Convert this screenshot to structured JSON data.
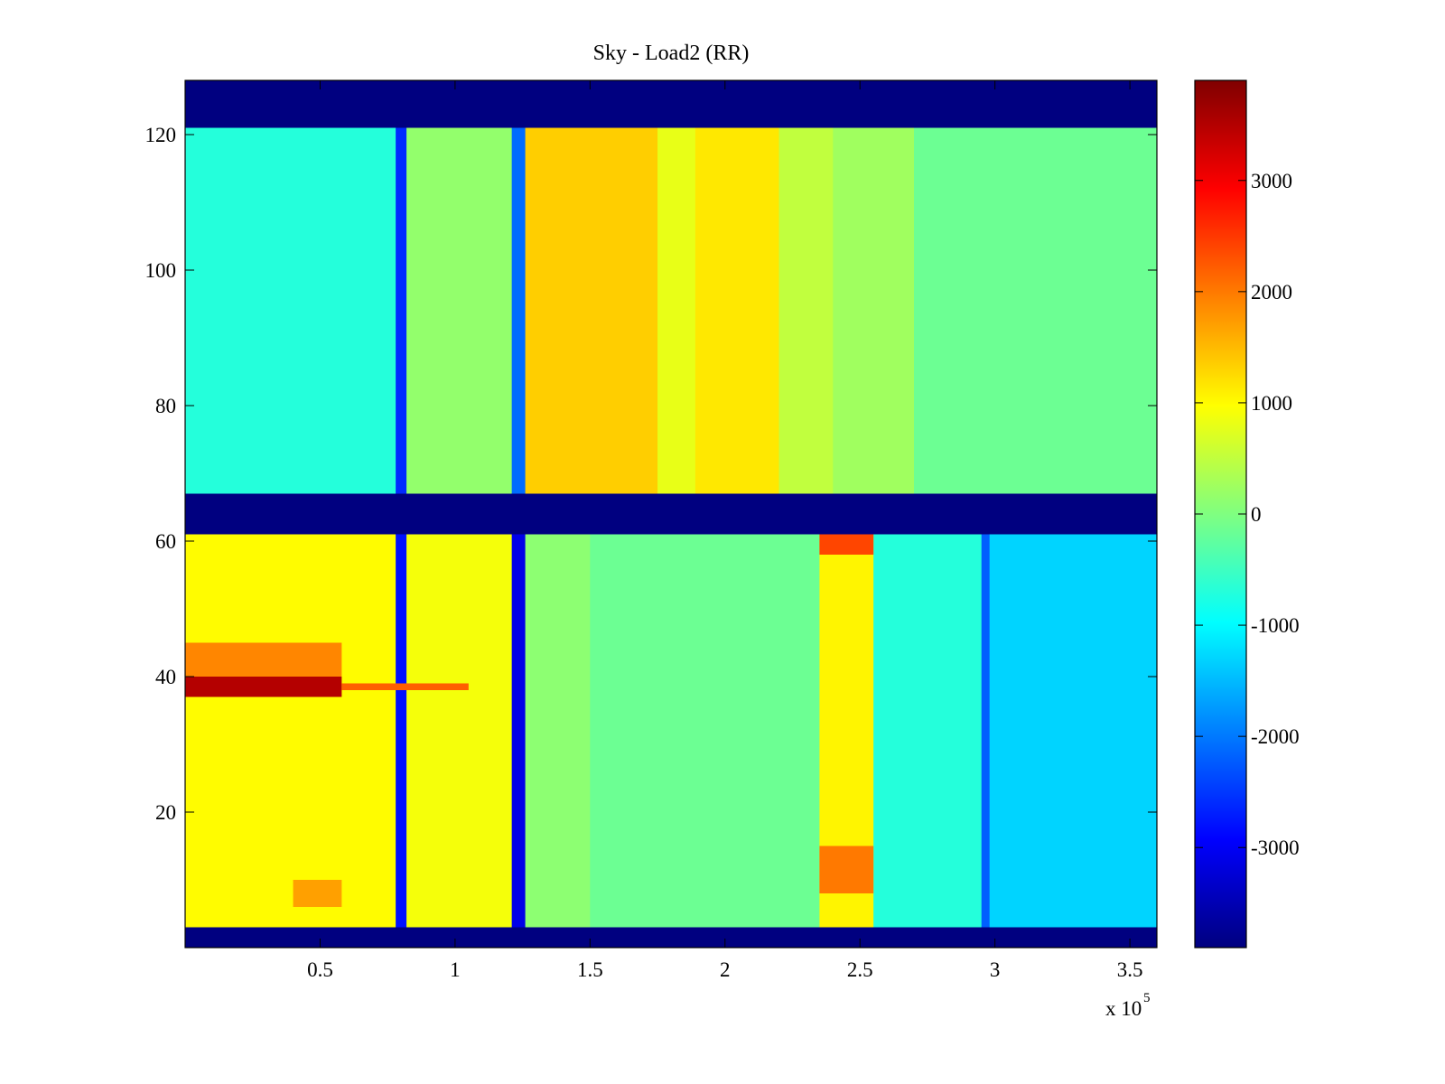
{
  "chart_data": {
    "type": "heatmap",
    "title": "Sky - Load2 (RR)",
    "xlabel": "",
    "ylabel": "",
    "x_multiplier_label": "x 10",
    "x_multiplier_exponent": "5",
    "xlim": [
      0,
      360000
    ],
    "ylim": [
      0,
      128
    ],
    "x_ticks": [
      {
        "value": 50000,
        "label": "0.5"
      },
      {
        "value": 100000,
        "label": "1"
      },
      {
        "value": 150000,
        "label": "1.5"
      },
      {
        "value": 200000,
        "label": "2"
      },
      {
        "value": 250000,
        "label": "2.5"
      },
      {
        "value": 300000,
        "label": "3"
      },
      {
        "value": 350000,
        "label": "3.5"
      }
    ],
    "y_ticks": [
      {
        "value": 20,
        "label": "20"
      },
      {
        "value": 40,
        "label": "40"
      },
      {
        "value": 60,
        "label": "60"
      },
      {
        "value": 80,
        "label": "80"
      },
      {
        "value": 100,
        "label": "100"
      },
      {
        "value": 120,
        "label": "120"
      }
    ],
    "colormap": "jet",
    "clim": [
      -3900,
      3900
    ],
    "colorbar_ticks": [
      {
        "value": 3000,
        "label": "3000"
      },
      {
        "value": 2000,
        "label": "2000"
      },
      {
        "value": 1000,
        "label": "1000"
      },
      {
        "value": 0,
        "label": "0"
      },
      {
        "value": -1000,
        "label": "-1000"
      },
      {
        "value": -2000,
        "label": "-2000"
      },
      {
        "value": -3000,
        "label": "-3000"
      }
    ],
    "blank_value": -3900,
    "blank_row_bands": [
      [
        0,
        3
      ],
      [
        61,
        67
      ],
      [
        121,
        128
      ]
    ],
    "upper_block": {
      "y_range": [
        67,
        121
      ],
      "column_segments": [
        {
          "x": [
            0,
            78000
          ],
          "value": -700
        },
        {
          "x": [
            78000,
            82000
          ],
          "value": -2600
        },
        {
          "x": [
            82000,
            121000
          ],
          "value": 150
        },
        {
          "x": [
            121000,
            126000
          ],
          "value": -2100
        },
        {
          "x": [
            126000,
            175000
          ],
          "value": 1350
        },
        {
          "x": [
            175000,
            189000
          ],
          "value": 800
        },
        {
          "x": [
            189000,
            220000
          ],
          "value": 1150
        },
        {
          "x": [
            220000,
            240000
          ],
          "value": 500
        },
        {
          "x": [
            240000,
            270000
          ],
          "value": 250
        },
        {
          "x": [
            270000,
            360000
          ],
          "value": -150
        }
      ]
    },
    "lower_block": {
      "y_range": [
        3,
        61
      ],
      "column_segments": [
        {
          "x": [
            0,
            78000
          ],
          "value": 1000
        },
        {
          "x": [
            78000,
            82000
          ],
          "value": -2800
        },
        {
          "x": [
            82000,
            121000
          ],
          "value": 900
        },
        {
          "x": [
            121000,
            126000
          ],
          "value": -3100
        },
        {
          "x": [
            126000,
            150000
          ],
          "value": 100
        },
        {
          "x": [
            150000,
            235000
          ],
          "value": -150
        },
        {
          "x": [
            235000,
            255000
          ],
          "value": 1050
        },
        {
          "x": [
            255000,
            295000
          ],
          "value": -700
        },
        {
          "x": [
            295000,
            298000
          ],
          "value": -2200
        },
        {
          "x": [
            298000,
            360000
          ],
          "value": -1300
        }
      ],
      "features": [
        {
          "x": [
            0,
            58000
          ],
          "y": [
            37,
            40
          ],
          "value": 3500
        },
        {
          "x": [
            58000,
            105000
          ],
          "y": [
            38,
            39
          ],
          "value": 2200
        },
        {
          "x": [
            0,
            58000
          ],
          "y": [
            40,
            45
          ],
          "value": 1900
        },
        {
          "x": [
            235000,
            255000
          ],
          "y": [
            58,
            61
          ],
          "value": 2400
        },
        {
          "x": [
            235000,
            255000
          ],
          "y": [
            8,
            15
          ],
          "value": 2000
        },
        {
          "x": [
            40000,
            58000
          ],
          "y": [
            6,
            10
          ],
          "value": 1700
        }
      ]
    }
  }
}
